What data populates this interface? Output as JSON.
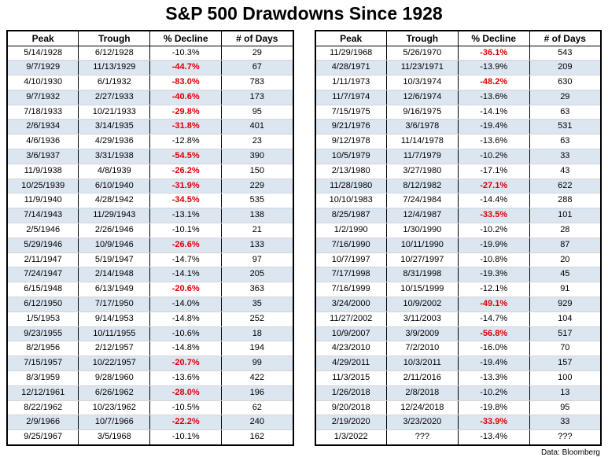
{
  "chart_data": {
    "type": "table",
    "title": "S&P 500 Drawdowns Since 1928",
    "source": "Data: Bloomberg",
    "columns": [
      "Peak",
      "Trough",
      "% Decline",
      "# of Days"
    ],
    "highlight_color": "#dd0000",
    "alt_row_color": "#dce6f1",
    "tables": [
      {
        "rows": [
          [
            "5/14/1928",
            "6/12/1928",
            "-10.3%",
            "29"
          ],
          [
            "9/7/1929",
            "11/13/1929",
            "-44.7%",
            "67"
          ],
          [
            "4/10/1930",
            "6/1/1932",
            "-83.0%",
            "783"
          ],
          [
            "9/7/1932",
            "2/27/1933",
            "-40.6%",
            "173"
          ],
          [
            "7/18/1933",
            "10/21/1933",
            "-29.8%",
            "95"
          ],
          [
            "2/6/1934",
            "3/14/1935",
            "-31.8%",
            "401"
          ],
          [
            "4/6/1936",
            "4/29/1936",
            "-12.8%",
            "23"
          ],
          [
            "3/6/1937",
            "3/31/1938",
            "-54.5%",
            "390"
          ],
          [
            "11/9/1938",
            "4/8/1939",
            "-26.2%",
            "150"
          ],
          [
            "10/25/1939",
            "6/10/1940",
            "-31.9%",
            "229"
          ],
          [
            "11/9/1940",
            "4/28/1942",
            "-34.5%",
            "535"
          ],
          [
            "7/14/1943",
            "11/29/1943",
            "-13.1%",
            "138"
          ],
          [
            "2/5/1946",
            "2/26/1946",
            "-10.1%",
            "21"
          ],
          [
            "5/29/1946",
            "10/9/1946",
            "-26.6%",
            "133"
          ],
          [
            "2/11/1947",
            "5/19/1947",
            "-14.7%",
            "97"
          ],
          [
            "7/24/1947",
            "2/14/1948",
            "-14.1%",
            "205"
          ],
          [
            "6/15/1948",
            "6/13/1949",
            "-20.6%",
            "363"
          ],
          [
            "6/12/1950",
            "7/17/1950",
            "-14.0%",
            "35"
          ],
          [
            "1/5/1953",
            "9/14/1953",
            "-14.8%",
            "252"
          ],
          [
            "9/23/1955",
            "10/11/1955",
            "-10.6%",
            "18"
          ],
          [
            "8/2/1956",
            "2/12/1957",
            "-14.8%",
            "194"
          ],
          [
            "7/15/1957",
            "10/22/1957",
            "-20.7%",
            "99"
          ],
          [
            "8/3/1959",
            "9/28/1960",
            "-13.6%",
            "422"
          ],
          [
            "12/12/1961",
            "6/26/1962",
            "-28.0%",
            "196"
          ],
          [
            "8/22/1962",
            "10/23/1962",
            "-10.5%",
            "62"
          ],
          [
            "2/9/1966",
            "10/7/1966",
            "-22.2%",
            "240"
          ],
          [
            "9/25/1967",
            "3/5/1968",
            "-10.1%",
            "162"
          ]
        ]
      },
      {
        "rows": [
          [
            "11/29/1968",
            "5/26/1970",
            "-36.1%",
            "543"
          ],
          [
            "4/28/1971",
            "11/23/1971",
            "-13.9%",
            "209"
          ],
          [
            "1/11/1973",
            "10/3/1974",
            "-48.2%",
            "630"
          ],
          [
            "11/7/1974",
            "12/6/1974",
            "-13.6%",
            "29"
          ],
          [
            "7/15/1975",
            "9/16/1975",
            "-14.1%",
            "63"
          ],
          [
            "9/21/1976",
            "3/6/1978",
            "-19.4%",
            "531"
          ],
          [
            "9/12/1978",
            "11/14/1978",
            "-13.6%",
            "63"
          ],
          [
            "10/5/1979",
            "11/7/1979",
            "-10.2%",
            "33"
          ],
          [
            "2/13/1980",
            "3/27/1980",
            "-17.1%",
            "43"
          ],
          [
            "11/28/1980",
            "8/12/1982",
            "-27.1%",
            "622"
          ],
          [
            "10/10/1983",
            "7/24/1984",
            "-14.4%",
            "288"
          ],
          [
            "8/25/1987",
            "12/4/1987",
            "-33.5%",
            "101"
          ],
          [
            "1/2/1990",
            "1/30/1990",
            "-10.2%",
            "28"
          ],
          [
            "7/16/1990",
            "10/11/1990",
            "-19.9%",
            "87"
          ],
          [
            "10/7/1997",
            "10/27/1997",
            "-10.8%",
            "20"
          ],
          [
            "7/17/1998",
            "8/31/1998",
            "-19.3%",
            "45"
          ],
          [
            "7/16/1999",
            "10/15/1999",
            "-12.1%",
            "91"
          ],
          [
            "3/24/2000",
            "10/9/2002",
            "-49.1%",
            "929"
          ],
          [
            "11/27/2002",
            "3/11/2003",
            "-14.7%",
            "104"
          ],
          [
            "10/9/2007",
            "3/9/2009",
            "-56.8%",
            "517"
          ],
          [
            "4/23/2010",
            "7/2/2010",
            "-16.0%",
            "70"
          ],
          [
            "4/29/2011",
            "10/3/2011",
            "-19.4%",
            "157"
          ],
          [
            "11/3/2015",
            "2/11/2016",
            "-13.3%",
            "100"
          ],
          [
            "1/26/2018",
            "2/8/2018",
            "-10.2%",
            "13"
          ],
          [
            "9/20/2018",
            "12/24/2018",
            "-19.8%",
            "95"
          ],
          [
            "2/19/2020",
            "3/23/2020",
            "-33.9%",
            "33"
          ],
          [
            "1/3/2022",
            "???",
            "-13.4%",
            "???"
          ]
        ]
      }
    ]
  }
}
